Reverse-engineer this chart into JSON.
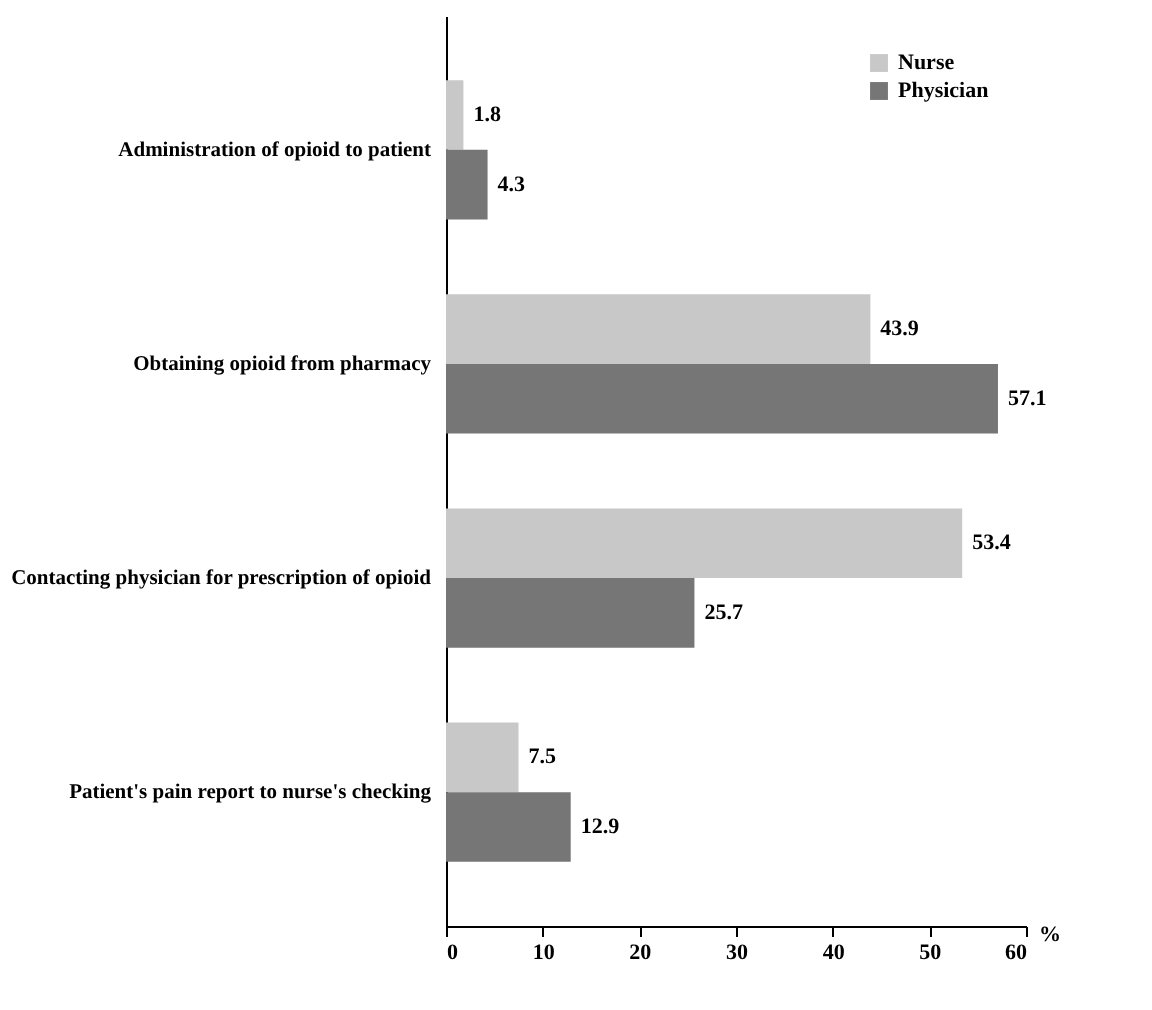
{
  "chart_data": {
    "type": "bar",
    "orientation": "horizontal",
    "categories": [
      "Administration of opioid to patient",
      "Obtaining opioid from pharmacy",
      "Contacting physician for prescription of opioid",
      "Patient's pain report to nurse's checking"
    ],
    "series": [
      {
        "name": "Nurse",
        "color": "#c8c8c8",
        "values": [
          1.8,
          43.9,
          53.4,
          7.5
        ]
      },
      {
        "name": "Physician",
        "color": "#767676",
        "values": [
          4.3,
          57.1,
          25.7,
          12.9
        ]
      }
    ],
    "xlabel": "%",
    "xlim": [
      0,
      60
    ],
    "xticks": [
      0,
      10,
      20,
      30,
      40,
      50,
      60
    ],
    "data_labels": true,
    "legend": "top right",
    "grid": false
  }
}
